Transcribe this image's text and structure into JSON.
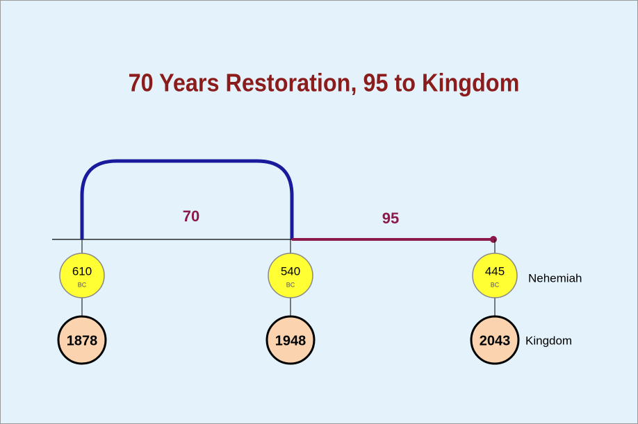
{
  "title": "70 Years Restoration, 95 to Kingdom",
  "spans": [
    {
      "label": "70"
    },
    {
      "label": "95"
    }
  ],
  "nodes": [
    {
      "top": "610",
      "era": "BC",
      "bottom": "1878"
    },
    {
      "top": "540",
      "era": "BC",
      "bottom": "1948"
    },
    {
      "top": "445",
      "era": "BC",
      "bottom": "2043",
      "top_note": "Nehemiah",
      "bottom_note": "Kingdom"
    }
  ]
}
